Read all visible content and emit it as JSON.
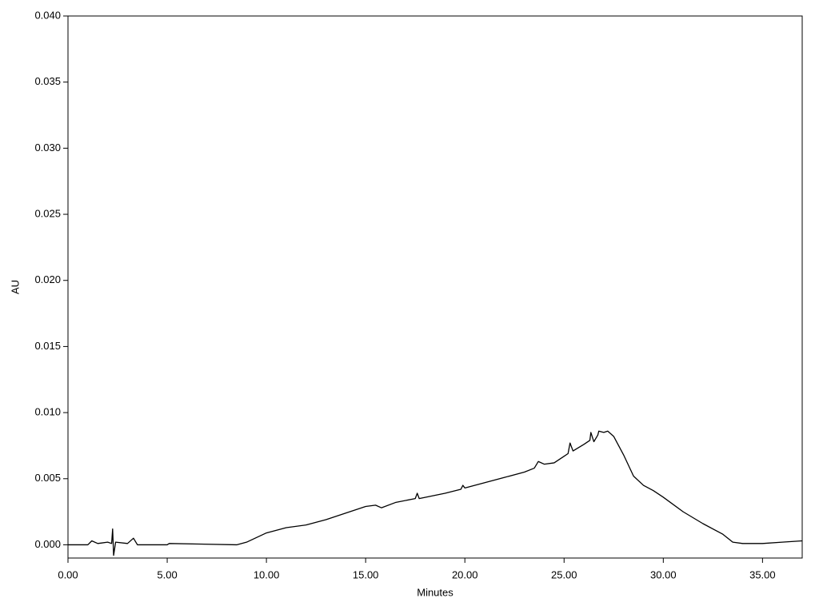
{
  "chart_data": {
    "type": "line",
    "x_label": "Minutes",
    "y_label": "AU",
    "x": [
      0,
      1.0,
      1.2,
      1.5,
      2.0,
      2.2,
      2.25,
      2.3,
      2.4,
      3.0,
      3.3,
      3.5,
      5.0,
      5.1,
      8.5,
      9.0,
      10.0,
      11.0,
      12.0,
      13.0,
      14.0,
      15.0,
      15.5,
      15.8,
      16.5,
      17.5,
      17.6,
      17.7,
      19.0,
      19.8,
      19.9,
      20.0,
      21.0,
      22.0,
      23.0,
      23.5,
      23.7,
      24.0,
      24.5,
      25.0,
      25.2,
      25.3,
      25.45,
      26.0,
      26.3,
      26.35,
      26.5,
      26.7,
      26.75,
      27.0,
      27.2,
      27.5,
      28.0,
      28.5,
      29.0,
      29.5,
      30.0,
      31.0,
      32.0,
      33.0,
      33.5,
      34.0,
      35.0,
      36.0,
      37.0
    ],
    "series": [
      {
        "color": "#000000",
        "values": [
          0,
          0.0,
          0.0003,
          0.0001,
          0.0002,
          0.0001,
          0.0012,
          -0.0008,
          0.0002,
          0.0001,
          0.0005,
          0.0,
          0.0,
          0.0001,
          0.0,
          0.0002,
          0.0009,
          0.0013,
          0.0015,
          0.0019,
          0.0024,
          0.0029,
          0.003,
          0.0028,
          0.0032,
          0.0035,
          0.0039,
          0.0035,
          0.0039,
          0.0042,
          0.0045,
          0.0043,
          0.0047,
          0.0051,
          0.0055,
          0.0058,
          0.0063,
          0.0061,
          0.0062,
          0.0067,
          0.0069,
          0.0077,
          0.0071,
          0.0076,
          0.0079,
          0.0085,
          0.0078,
          0.0083,
          0.0086,
          0.0085,
          0.0086,
          0.0082,
          0.0068,
          0.0052,
          0.0045,
          0.0041,
          0.0036,
          0.0025,
          0.0016,
          0.0008,
          0.0002,
          0.0001,
          0.0001,
          0.0002,
          0.0003
        ]
      }
    ],
    "xlim": [
      0,
      37.0
    ],
    "ylim": [
      -0.001,
      0.04
    ],
    "xticks": [
      {
        "value": 0,
        "label": "0.00"
      },
      {
        "value": 5,
        "label": "5.00"
      },
      {
        "value": 10,
        "label": "10.00"
      },
      {
        "value": 15,
        "label": "15.00"
      },
      {
        "value": 20,
        "label": "20.00"
      },
      {
        "value": 25,
        "label": "25.00"
      },
      {
        "value": 30,
        "label": "30.00"
      },
      {
        "value": 35,
        "label": "35.00"
      }
    ],
    "yticks": [
      {
        "value": 0,
        "label": "0.000"
      },
      {
        "value": 0.005,
        "label": "0.005"
      },
      {
        "value": 0.01,
        "label": "0.010"
      },
      {
        "value": 0.015,
        "label": "0.015"
      },
      {
        "value": 0.02,
        "label": "0.020"
      },
      {
        "value": 0.025,
        "label": "0.025"
      },
      {
        "value": 0.03,
        "label": "0.030"
      },
      {
        "value": 0.035,
        "label": "0.035"
      },
      {
        "value": 0.04,
        "label": "0.040"
      }
    ],
    "grid": false
  }
}
